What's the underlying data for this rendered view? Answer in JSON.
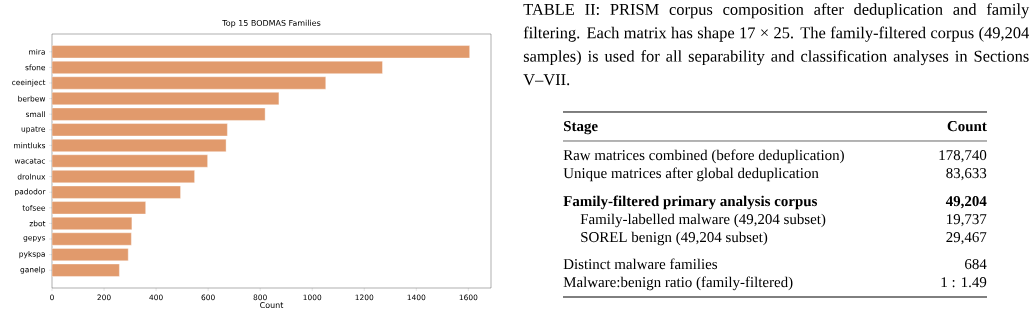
{
  "chart_data": [
    {
      "type": "bar",
      "orientation": "horizontal",
      "title": "Top 15 BODMAS Families",
      "xlabel": "Count",
      "categories": [
        "mira",
        "sfone",
        "ceeinject",
        "berbew",
        "small",
        "upatre",
        "mintluks",
        "wacatac",
        "drolnux",
        "padodor",
        "tofsee",
        "zbot",
        "gepys",
        "pykspa",
        "ganelp"
      ],
      "values": [
        1605,
        1270,
        1052,
        872,
        819,
        674,
        669,
        598,
        548,
        494,
        360,
        307,
        305,
        293,
        259
      ],
      "color": "#e19a6c",
      "xlim": [
        0,
        1687
      ],
      "xticks": [
        0,
        200,
        400,
        600,
        800,
        1000,
        1200,
        1400,
        1600
      ]
    },
    {
      "type": "other",
      "title": "TABLE II: PRISM corpus composition after deduplication and family filtering. Each matrix has shape 17 × 25. The family-filtered corpus (49,204 samples) is used for all separability and classification analyses in Sections V–VII.",
      "annotations": [
        "**Stage**",
        "**Count**",
        "Raw matrices combined (before deduplication)",
        "178,740",
        "Unique matrices after global deduplication",
        "83,633",
        "**Family-filtered primary analysis corpus**",
        "**49,204**",
        "Family-labelled malware (49,204 subset)",
        "19,737",
        "SOREL benign (49,204 subset)",
        "29,467",
        "Distinct malware families",
        "684",
        "Malware:benign ratio (family-filtered)",
        "1 : 1.49"
      ]
    }
  ]
}
